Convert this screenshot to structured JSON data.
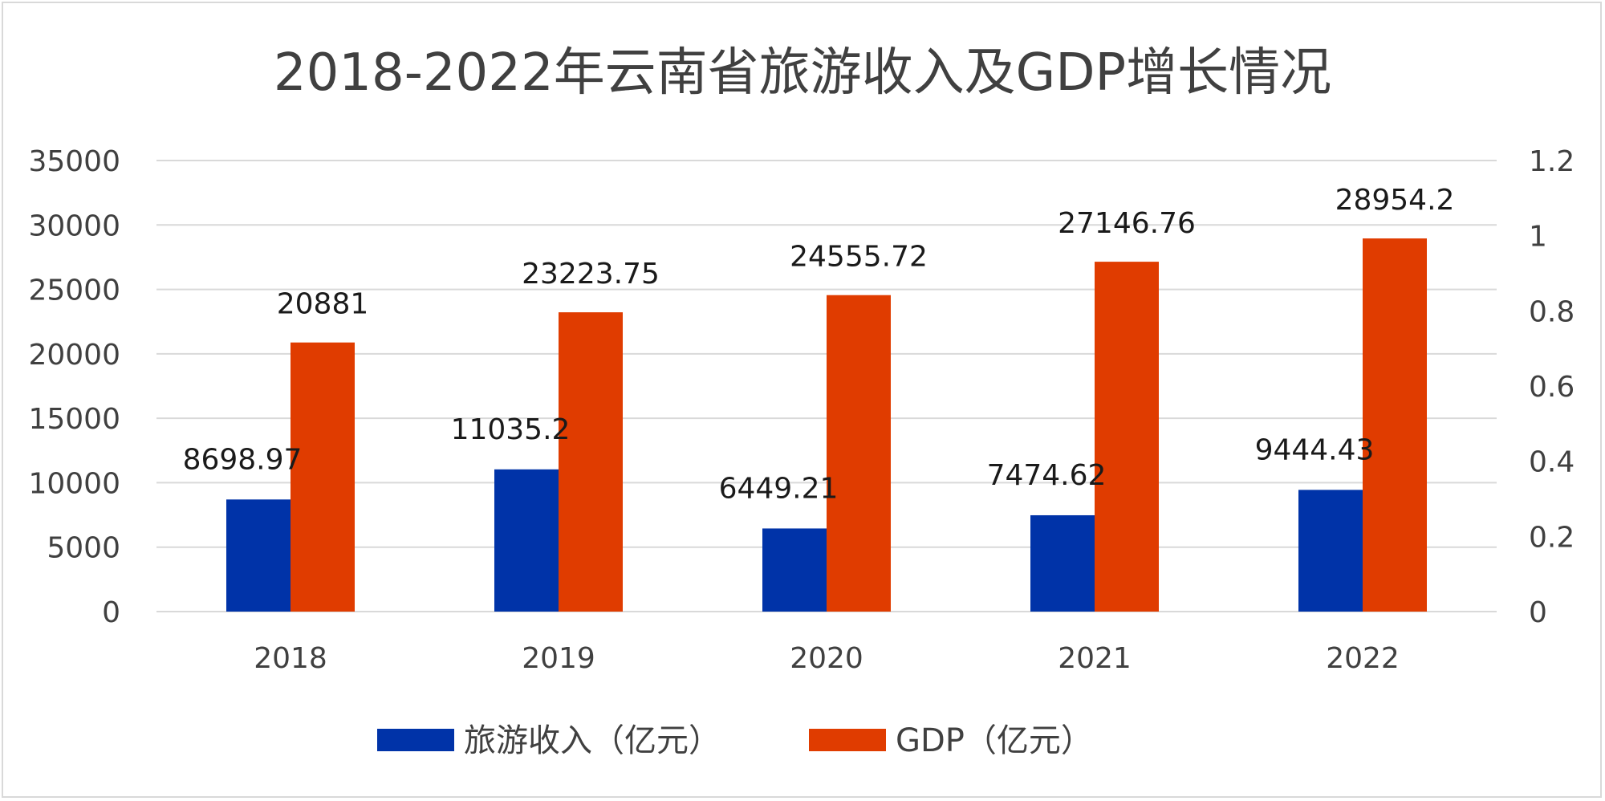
{
  "chart_data": {
    "type": "bar",
    "title": "2018-2022年云南省旅游收入及GDP增长情况",
    "categories": [
      "2018",
      "2019",
      "2020",
      "2021",
      "2022"
    ],
    "series": [
      {
        "name": "旅游收入（亿元）",
        "color": "#0033a8",
        "values": [
          8698.97,
          11035.2,
          6449.21,
          7474.62,
          9444.43
        ],
        "labels": [
          "8698.97",
          "11035.2",
          "6449.21",
          "7474.62",
          "9444.43"
        ]
      },
      {
        "name": "GDP（亿元）",
        "color": "#e03c00",
        "values": [
          20881,
          23223.75,
          24555.72,
          27146.76,
          28954.2
        ],
        "labels": [
          "20881",
          "23223.75",
          "24555.72",
          "27146.76",
          "28954.2"
        ]
      }
    ],
    "xlabel": "",
    "ylabel": "",
    "ylim": [
      0,
      35000
    ],
    "yticks": [
      "0",
      "5000",
      "10000",
      "15000",
      "20000",
      "25000",
      "30000",
      "35000"
    ],
    "y2lim": [
      0,
      1.2
    ],
    "y2ticks": [
      "0",
      "0.2",
      "0.4",
      "0.6",
      "0.8",
      "1",
      "1.2"
    ],
    "grid": true,
    "legend": "bottom-center"
  }
}
